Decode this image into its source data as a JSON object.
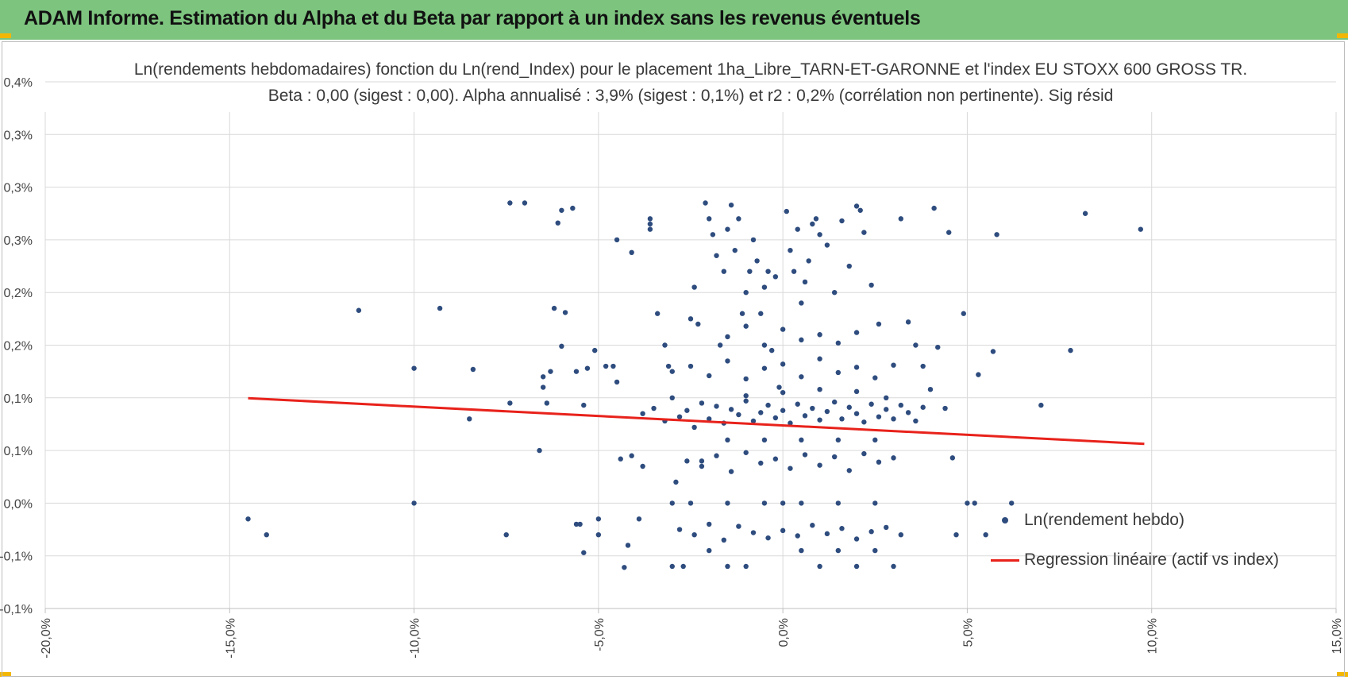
{
  "header": {
    "title": "ADAM Informe. Estimation du Alpha et du Beta par rapport à un index sans les revenus éventuels",
    "background": "#7dc47f",
    "accent": "#f2b705"
  },
  "chart_data": {
    "type": "scatter",
    "title": "Ln(rendements hebdomadaires) fonction du Ln(rend_Index) pour le placement 1ha_Libre_TARN-ET-GARONNE et l'index EU STOXX 600 GROSS TR.",
    "subtitle": "Beta : 0,00 (sigest : 0,00). Alpha annualisé : 3,9% (sigest : 0,1%) et r2 : 0,2% (corrélation non pertinente). Sig résid",
    "xlabel": "",
    "ylabel": "",
    "xlim": [
      -20,
      15
    ],
    "ylim": [
      -0.1,
      0.4
    ],
    "x_ticks": [
      -20,
      -15,
      -10,
      -5,
      0,
      5,
      10,
      15
    ],
    "x_tick_labels": [
      "-20,0%",
      "-15,0%",
      "-10,0%",
      "-5,0%",
      "0,0%",
      "5,0%",
      "10,0%",
      "15,0%"
    ],
    "y_ticks": [
      -0.1,
      -0.05,
      0.0,
      0.05,
      0.1,
      0.15,
      0.2,
      0.25,
      0.3,
      0.35,
      0.4
    ],
    "y_tick_labels": [
      "-0,1%",
      "-0,1%",
      "0,0%",
      "0,1%",
      "0,1%",
      "0,2%",
      "0,2%",
      "0,3%",
      "0,3%",
      "0,3%",
      "0,4%"
    ],
    "grid": true,
    "legend_position": "bottom-right",
    "series": [
      {
        "name": "Ln(rendement hebdo)",
        "type": "scatter",
        "color": "#2e4c7e",
        "points": [
          [
            -14.5,
            -0.015
          ],
          [
            -14.0,
            -0.03
          ],
          [
            -11.5,
            0.183
          ],
          [
            -10.0,
            0.128
          ],
          [
            -10.0,
            0.0
          ],
          [
            -9.3,
            0.185
          ],
          [
            -8.5,
            0.08
          ],
          [
            -8.4,
            0.127
          ],
          [
            -7.5,
            -0.03
          ],
          [
            -7.4,
            0.095
          ],
          [
            -7.4,
            0.285
          ],
          [
            -7.0,
            0.285
          ],
          [
            -6.6,
            0.05
          ],
          [
            -6.5,
            0.11
          ],
          [
            -6.4,
            0.095
          ],
          [
            -6.5,
            0.12
          ],
          [
            -6.3,
            0.125
          ],
          [
            -6.2,
            0.185
          ],
          [
            -6.0,
            0.149
          ],
          [
            -6.1,
            0.266
          ],
          [
            -6.0,
            0.278
          ],
          [
            -5.9,
            0.181
          ],
          [
            -5.7,
            0.28
          ],
          [
            -5.6,
            0.125
          ],
          [
            -5.5,
            -0.02
          ],
          [
            -5.6,
            -0.02
          ],
          [
            -5.4,
            -0.047
          ],
          [
            -5.3,
            0.128
          ],
          [
            -5.4,
            0.093
          ],
          [
            -5.1,
            0.145
          ],
          [
            -5.0,
            -0.015
          ],
          [
            -5.0,
            -0.03
          ],
          [
            -4.8,
            0.13
          ],
          [
            -4.6,
            0.13
          ],
          [
            -4.5,
            0.115
          ],
          [
            -4.4,
            0.042
          ],
          [
            -4.5,
            0.25
          ],
          [
            -4.3,
            -0.061
          ],
          [
            -4.2,
            -0.04
          ],
          [
            -4.1,
            0.045
          ],
          [
            -4.1,
            0.238
          ],
          [
            -3.9,
            -0.015
          ],
          [
            -3.8,
            0.035
          ],
          [
            -3.6,
            0.26
          ],
          [
            -3.6,
            0.27
          ],
          [
            -3.6,
            0.265
          ],
          [
            -3.4,
            0.18
          ],
          [
            -3.2,
            0.15
          ],
          [
            -3.1,
            0.13
          ],
          [
            -3.0,
            -0.06
          ],
          [
            -3.0,
            0.0
          ],
          [
            -2.9,
            0.02
          ],
          [
            -2.7,
            -0.06
          ],
          [
            -2.5,
            0.175
          ],
          [
            -2.4,
            0.205
          ],
          [
            -2.3,
            0.17
          ],
          [
            -2.2,
            0.04
          ],
          [
            -2.1,
            0.285
          ],
          [
            -2.0,
            0.27
          ],
          [
            -1.9,
            0.255
          ],
          [
            -1.8,
            0.235
          ],
          [
            -1.7,
            0.15
          ],
          [
            -1.6,
            0.22
          ],
          [
            -1.5,
            0.26
          ],
          [
            -1.5,
            -0.06
          ],
          [
            -1.4,
            0.283
          ],
          [
            -1.3,
            0.24
          ],
          [
            -1.2,
            0.27
          ],
          [
            -1.1,
            0.18
          ],
          [
            -1.0,
            0.2
          ],
          [
            -0.9,
            0.22
          ],
          [
            -0.8,
            0.25
          ],
          [
            -0.7,
            0.23
          ],
          [
            -0.6,
            0.18
          ],
          [
            -0.5,
            0.205
          ],
          [
            -0.4,
            0.22
          ],
          [
            -0.3,
            0.145
          ],
          [
            -0.2,
            0.215
          ],
          [
            -0.1,
            0.11
          ],
          [
            0.0,
            0.0
          ],
          [
            0.1,
            0.277
          ],
          [
            0.2,
            0.24
          ],
          [
            0.3,
            0.22
          ],
          [
            0.4,
            0.26
          ],
          [
            0.5,
            0.19
          ],
          [
            0.6,
            0.21
          ],
          [
            0.7,
            0.23
          ],
          [
            0.8,
            0.265
          ],
          [
            0.9,
            0.27
          ],
          [
            1.0,
            0.255
          ],
          [
            1.2,
            0.245
          ],
          [
            1.4,
            0.2
          ],
          [
            1.6,
            0.268
          ],
          [
            1.8,
            0.225
          ],
          [
            2.0,
            0.282
          ],
          [
            2.1,
            0.278
          ],
          [
            2.2,
            0.257
          ],
          [
            2.4,
            0.207
          ],
          [
            2.6,
            0.17
          ],
          [
            2.8,
            0.1
          ],
          [
            3.0,
            -0.06
          ],
          [
            3.2,
            0.27
          ],
          [
            3.4,
            0.172
          ],
          [
            3.6,
            0.15
          ],
          [
            3.8,
            0.13
          ],
          [
            4.0,
            0.108
          ],
          [
            4.1,
            0.28
          ],
          [
            4.2,
            0.148
          ],
          [
            4.4,
            0.09
          ],
          [
            4.5,
            0.257
          ],
          [
            4.6,
            0.043
          ],
          [
            4.7,
            -0.03
          ],
          [
            4.9,
            0.18
          ],
          [
            5.0,
            0.0
          ],
          [
            5.2,
            0.0
          ],
          [
            5.3,
            0.122
          ],
          [
            5.5,
            -0.03
          ],
          [
            5.7,
            0.144
          ],
          [
            5.8,
            0.255
          ],
          [
            6.2,
            0.0
          ],
          [
            7.0,
            0.093
          ],
          [
            7.8,
            0.145
          ],
          [
            8.2,
            0.275
          ],
          [
            9.7,
            0.26
          ],
          [
            -3.8,
            0.085
          ],
          [
            -3.5,
            0.09
          ],
          [
            -3.2,
            0.078
          ],
          [
            -3.0,
            0.1
          ],
          [
            -2.8,
            0.082
          ],
          [
            -2.6,
            0.088
          ],
          [
            -2.4,
            0.072
          ],
          [
            -2.2,
            0.095
          ],
          [
            -2.0,
            0.08
          ],
          [
            -1.8,
            0.092
          ],
          [
            -1.6,
            0.076
          ],
          [
            -1.4,
            0.089
          ],
          [
            -1.2,
            0.084
          ],
          [
            -1.0,
            0.097
          ],
          [
            -0.8,
            0.078
          ],
          [
            -0.6,
            0.086
          ],
          [
            -0.4,
            0.093
          ],
          [
            -0.2,
            0.081
          ],
          [
            0.0,
            0.088
          ],
          [
            0.2,
            0.076
          ],
          [
            0.4,
            0.094
          ],
          [
            0.6,
            0.083
          ],
          [
            0.8,
            0.09
          ],
          [
            1.0,
            0.079
          ],
          [
            1.2,
            0.087
          ],
          [
            1.4,
            0.096
          ],
          [
            1.6,
            0.08
          ],
          [
            1.8,
            0.091
          ],
          [
            2.0,
            0.085
          ],
          [
            2.2,
            0.077
          ],
          [
            2.4,
            0.094
          ],
          [
            2.6,
            0.082
          ],
          [
            2.8,
            0.089
          ],
          [
            3.0,
            0.08
          ],
          [
            3.2,
            0.093
          ],
          [
            3.4,
            0.086
          ],
          [
            3.6,
            0.078
          ],
          [
            3.8,
            0.091
          ],
          [
            -3.0,
            0.125
          ],
          [
            -2.5,
            0.13
          ],
          [
            -2.0,
            0.121
          ],
          [
            -1.5,
            0.135
          ],
          [
            -1.0,
            0.118
          ],
          [
            -0.5,
            0.128
          ],
          [
            0.0,
            0.132
          ],
          [
            0.5,
            0.12
          ],
          [
            1.0,
            0.137
          ],
          [
            1.5,
            0.124
          ],
          [
            2.0,
            0.129
          ],
          [
            2.5,
            0.119
          ],
          [
            3.0,
            0.131
          ],
          [
            -2.6,
            0.04
          ],
          [
            -2.2,
            0.035
          ],
          [
            -1.8,
            0.045
          ],
          [
            -1.4,
            0.03
          ],
          [
            -1.0,
            0.048
          ],
          [
            -0.6,
            0.038
          ],
          [
            -0.2,
            0.042
          ],
          [
            0.2,
            0.033
          ],
          [
            0.6,
            0.046
          ],
          [
            1.0,
            0.036
          ],
          [
            1.4,
            0.044
          ],
          [
            1.8,
            0.031
          ],
          [
            2.2,
            0.047
          ],
          [
            2.6,
            0.039
          ],
          [
            3.0,
            0.043
          ],
          [
            -2.8,
            -0.025
          ],
          [
            -2.4,
            -0.03
          ],
          [
            -2.0,
            -0.02
          ],
          [
            -1.6,
            -0.035
          ],
          [
            -1.2,
            -0.022
          ],
          [
            -0.8,
            -0.028
          ],
          [
            -0.4,
            -0.033
          ],
          [
            0.0,
            -0.026
          ],
          [
            0.4,
            -0.031
          ],
          [
            0.8,
            -0.021
          ],
          [
            1.2,
            -0.029
          ],
          [
            1.6,
            -0.024
          ],
          [
            2.0,
            -0.034
          ],
          [
            2.4,
            -0.027
          ],
          [
            2.8,
            -0.023
          ],
          [
            3.2,
            -0.03
          ],
          [
            -2.5,
            0.0
          ],
          [
            -1.5,
            0.0
          ],
          [
            -0.5,
            0.0
          ],
          [
            0.5,
            0.0
          ],
          [
            1.5,
            0.0
          ],
          [
            2.5,
            0.0
          ],
          [
            -1.0,
            -0.06
          ],
          [
            1.0,
            -0.06
          ],
          [
            2.0,
            -0.06
          ],
          [
            -2.0,
            -0.045
          ],
          [
            0.5,
            -0.045
          ],
          [
            1.5,
            -0.045
          ],
          [
            2.5,
            -0.045
          ],
          [
            -0.5,
            0.06
          ],
          [
            0.5,
            0.06
          ],
          [
            1.5,
            0.06
          ],
          [
            -1.5,
            0.06
          ],
          [
            2.5,
            0.06
          ],
          [
            -0.5,
            0.15
          ],
          [
            0.5,
            0.155
          ],
          [
            1.5,
            0.152
          ],
          [
            -1.5,
            0.158
          ],
          [
            0.0,
            0.165
          ],
          [
            1.0,
            0.16
          ],
          [
            2.0,
            0.162
          ],
          [
            -1.0,
            0.168
          ],
          [
            0.0,
            0.105
          ],
          [
            1.0,
            0.108
          ],
          [
            -1.0,
            0.102
          ],
          [
            2.0,
            0.106
          ]
        ]
      },
      {
        "name": "Regression linéaire (actif vs index)",
        "type": "line",
        "color": "#e8221b",
        "x": [
          -14.5,
          9.8
        ],
        "y": [
          0.0997,
          0.0563
        ]
      }
    ]
  }
}
